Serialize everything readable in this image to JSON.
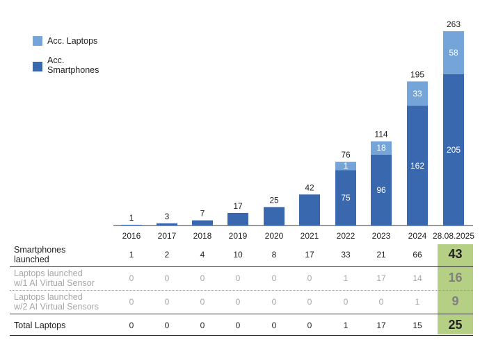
{
  "chart_data": {
    "type": "bar",
    "stacked": true,
    "categories": [
      "2016",
      "2017",
      "2018",
      "2019",
      "2020",
      "2021",
      "2022",
      "2023",
      "2024",
      "28.08.2025"
    ],
    "series": [
      {
        "name": "Acc. Smartphones",
        "color": "#3a68ae",
        "values": [
          1,
          3,
          7,
          17,
          25,
          42,
          75,
          96,
          162,
          205
        ]
      },
      {
        "name": "Acc. Laptops",
        "color": "#75a5d8",
        "values": [
          0,
          0,
          0,
          0,
          0,
          0,
          1,
          18,
          33,
          58
        ]
      }
    ],
    "totals": [
      1,
      3,
      7,
      17,
      25,
      42,
      76,
      114,
      195,
      263
    ],
    "legend": [
      {
        "label": "Acc. Laptops",
        "color": "#75a5d8"
      },
      {
        "label": "Acc.\nSmartphones",
        "color": "#3a68ae"
      }
    ],
    "legend_position": "top-left",
    "ylim": [
      0,
      263
    ]
  },
  "table": {
    "rows": [
      {
        "label": "Smartphones\nlaunched",
        "style": "normal",
        "values": [
          "1",
          "2",
          "4",
          "10",
          "8",
          "17",
          "33",
          "21",
          "66"
        ],
        "highlight": "43"
      },
      {
        "label": "Laptops launched\nw/1 AI Virtual Sensor",
        "style": "gray",
        "values": [
          "0",
          "0",
          "0",
          "0",
          "0",
          "0",
          "1",
          "17",
          "14"
        ],
        "highlight": "16"
      },
      {
        "label": "Laptops launched\nw/2 AI Virtual Sensors",
        "style": "gray",
        "values": [
          "0",
          "0",
          "0",
          "0",
          "0",
          "0",
          "0",
          "0",
          "1"
        ],
        "highlight": "9"
      },
      {
        "label": "Total Laptops",
        "style": "normal",
        "values": [
          "0",
          "0",
          "0",
          "0",
          "0",
          "0",
          "1",
          "17",
          "15"
        ],
        "highlight": "25"
      }
    ]
  }
}
